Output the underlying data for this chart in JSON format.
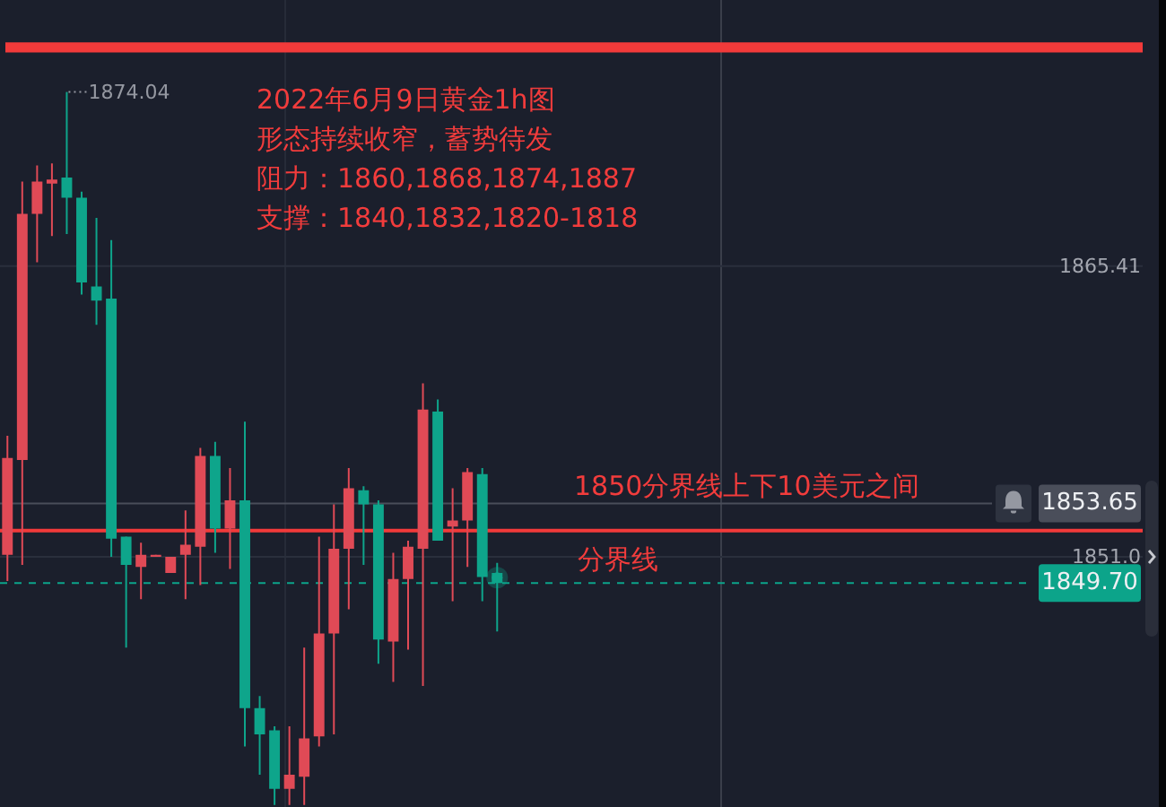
{
  "chart_data": {
    "type": "candlestick",
    "title": "2022年6月9日黄金1h图",
    "subtitle": "形态持续收窄，蓄势待发",
    "annotations": [
      "阻力：1860,1868,1874,1887",
      "支撑：1840,1832,1820-1818",
      "1874.04",
      "1850分界线上下10美元之间",
      "分界线"
    ],
    "categories": [
      null,
      null,
      null,
      null,
      null,
      null,
      null,
      null,
      null,
      null,
      null,
      null,
      null,
      null,
      null,
      null,
      null,
      null,
      null,
      null,
      null,
      null,
      null,
      null,
      null,
      null,
      null,
      null,
      null,
      null,
      null,
      null,
      null,
      null,
      null,
      null,
      null,
      null,
      null,
      null,
      null,
      null,
      null,
      null,
      null,
      null,
      null,
      null,
      null,
      null,
      null,
      null,
      null,
      null,
      null,
      null,
      null,
      null,
      null,
      null,
      null,
      null,
      null,
      null,
      null,
      null,
      null,
      null,
      null,
      null,
      null,
      null,
      null,
      null,
      null,
      null,
      null
    ],
    "ohlc": [
      [
        1851.1,
        1857.0,
        1849.8,
        1855.9
      ],
      [
        1855.8,
        1869.6,
        1850.6,
        1868.0
      ],
      [
        1868.0,
        1870.4,
        1865.6,
        1869.6
      ],
      [
        1869.5,
        1870.5,
        1866.9,
        1869.7
      ],
      [
        1869.8,
        1874.04,
        1867.0,
        1868.8
      ],
      [
        1868.8,
        1869.1,
        1864.0,
        1864.6
      ],
      [
        1864.4,
        1867.8,
        1862.5,
        1863.7
      ],
      [
        1863.8,
        1866.7,
        1851.0,
        1851.9
      ],
      [
        1852.0,
        1852.0,
        1846.5,
        1850.6
      ],
      [
        1850.5,
        1851.7,
        1848.9,
        1851.1
      ],
      [
        1851.0,
        1851.1,
        1851.0,
        1851.1
      ],
      [
        1850.2,
        1851.0,
        1850.2,
        1851.0
      ],
      [
        1851.1,
        1853.3,
        1848.9,
        1851.6
      ],
      [
        1851.5,
        1856.4,
        1849.6,
        1856.0
      ],
      [
        1856.0,
        1856.7,
        1851.2,
        1852.4
      ],
      [
        1852.4,
        1855.4,
        1850.4,
        1853.8
      ],
      [
        1853.8,
        1857.7,
        1841.6,
        1843.5
      ],
      [
        1843.5,
        1844.1,
        1840.2,
        1842.2
      ],
      [
        1842.4,
        1842.6,
        1838.7,
        1839.5
      ],
      [
        1839.5,
        1842.6,
        1838.7,
        1840.2
      ],
      [
        1840.1,
        1846.5,
        1838.7,
        1842.0
      ],
      [
        1842.1,
        1852.0,
        1841.6,
        1847.2
      ],
      [
        1847.2,
        1853.6,
        1842.2,
        1851.4
      ],
      [
        1851.4,
        1855.4,
        1848.4,
        1854.4
      ],
      [
        1854.3,
        1854.5,
        1850.6,
        1853.6
      ],
      [
        1853.6,
        1853.8,
        1845.7,
        1846.9
      ],
      [
        1846.8,
        1851.2,
        1844.8,
        1849.9
      ],
      [
        1849.9,
        1851.8,
        1846.4,
        1851.5
      ],
      [
        1851.4,
        1859.6,
        1844.6,
        1858.3
      ],
      [
        1858.2,
        1858.8,
        1851.8,
        1851.8
      ],
      [
        1852.5,
        1854.4,
        1848.8,
        1852.8
      ],
      [
        1852.8,
        1855.4,
        1850.5,
        1855.2
      ],
      [
        1855.1,
        1855.4,
        1848.8,
        1850.0
      ],
      [
        1850.2,
        1850.7,
        1847.3,
        1849.7
      ],
      null,
      null,
      null,
      null,
      null,
      null,
      null,
      null,
      null,
      null,
      null,
      null,
      null,
      null,
      null,
      null,
      null,
      null,
      null,
      null,
      null,
      null,
      null,
      null,
      null,
      null,
      null,
      null,
      null,
      null,
      null,
      null,
      null,
      null,
      null,
      null,
      null,
      null,
      null,
      null,
      null,
      null,
      null
    ],
    "colors": [
      "#e04a56",
      "#e04a56",
      "#e04a56",
      "#e04a56",
      "#0ea58b",
      "#0ea58b",
      "#0ea58b",
      "#0ea58b",
      "#0ea58b",
      "#e04a56",
      "#e04a56",
      "#e04a56",
      "#e04a56",
      "#e04a56",
      "#0ea58b",
      "#e04a56",
      "#0ea58b",
      "#0ea58b",
      "#0ea58b",
      "#e04a56",
      "#e04a56",
      "#e04a56",
      "#e04a56",
      "#e04a56",
      "#0ea58b",
      "#0ea58b",
      "#e04a56",
      "#e04a56",
      "#e04a56",
      "#0ea58b",
      "#e04a56",
      "#e04a56",
      "#0ea58b",
      "#0ea58b",
      null,
      null,
      null,
      null,
      null,
      null,
      null,
      null,
      null,
      null,
      null,
      null,
      null,
      null,
      null,
      null,
      null,
      null,
      null,
      null,
      null,
      null,
      null,
      null,
      null,
      null,
      null,
      null,
      null,
      null,
      null,
      null,
      null,
      null,
      null,
      null,
      null,
      null,
      null,
      null,
      null,
      null,
      null
    ],
    "ylim": [
      1838.6,
      1878.6
    ],
    "yticks": [
      1865.41,
      {
        "value": 1851,
        "label": "1851.0"
      }
    ],
    "grid": "y",
    "ref_lines": [
      {
        "axis": "y",
        "value": 1853.65,
        "label": "1853.65",
        "color": "#4a4e5a"
      },
      {
        "axis": "y",
        "value": 1849.7,
        "label": "1849.70",
        "color": "#0ca48a",
        "line_style": "dashed"
      },
      {
        "axis": "y",
        "value": 1852.3,
        "color": "#f23a3a"
      }
    ],
    "bands": [
      {
        "axis": "y",
        "from": 1876.0,
        "to": 1876.5,
        "color": "#f23a3a"
      }
    ]
  }
}
